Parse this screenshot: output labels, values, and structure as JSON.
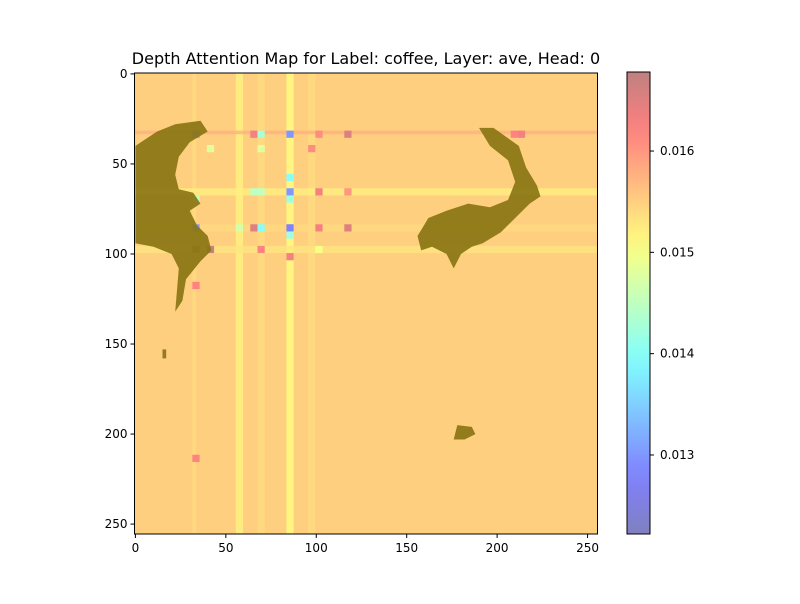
{
  "chart_data": {
    "type": "heatmap",
    "title": "Depth Attention Map for Label: coffee, Layer: ave, Head: 0",
    "xlabel": "",
    "ylabel": "",
    "x_ticks": [
      0,
      50,
      100,
      150,
      200,
      250
    ],
    "y_ticks": [
      0,
      50,
      100,
      150,
      200,
      250
    ],
    "xlim": [
      -0.5,
      255.5
    ],
    "ylim": [
      255.5,
      -0.5
    ],
    "grid": false,
    "colorbar": {
      "colormap": "jet",
      "alpha": 0.5,
      "range": [
        0.01222,
        0.01678
      ],
      "ticks": [
        0.013,
        0.014,
        0.015,
        0.016
      ],
      "tick_labels": [
        "0.013",
        "0.014",
        "0.015",
        "0.016"
      ]
    },
    "background_value": 0.0155,
    "vertical_bands": [
      {
        "x": [
          56,
          60
        ],
        "value": 0.0152
      },
      {
        "x": [
          84,
          88
        ],
        "value": 0.0151
      },
      {
        "x": [
          68,
          72
        ],
        "value": 0.0154
      },
      {
        "x": [
          32,
          34
        ],
        "value": 0.0154
      },
      {
        "x": [
          96,
          100
        ],
        "value": 0.0154
      }
    ],
    "horizontal_bands": [
      {
        "y": [
          64,
          68
        ],
        "value": 0.0152
      },
      {
        "y": [
          96,
          100
        ],
        "value": 0.0153
      },
      {
        "y": [
          84,
          88
        ],
        "value": 0.0154
      },
      {
        "y": [
          32,
          34
        ],
        "value": 0.0158
      }
    ],
    "hot_cells": [
      {
        "x": 32,
        "y": 32,
        "value": 0.013
      },
      {
        "x": 84,
        "y": 32,
        "value": 0.013
      },
      {
        "x": 84,
        "y": 64,
        "value": 0.013
      },
      {
        "x": 32,
        "y": 84,
        "value": 0.013
      },
      {
        "x": 84,
        "y": 84,
        "value": 0.0128
      },
      {
        "x": 68,
        "y": 32,
        "value": 0.0143
      },
      {
        "x": 40,
        "y": 40,
        "value": 0.0148
      },
      {
        "x": 68,
        "y": 40,
        "value": 0.0148
      },
      {
        "x": 84,
        "y": 56,
        "value": 0.014
      },
      {
        "x": 64,
        "y": 64,
        "value": 0.0145
      },
      {
        "x": 68,
        "y": 64,
        "value": 0.0145
      },
      {
        "x": 32,
        "y": 68,
        "value": 0.0145
      },
      {
        "x": 84,
        "y": 68,
        "value": 0.0142
      },
      {
        "x": 68,
        "y": 84,
        "value": 0.014
      },
      {
        "x": 84,
        "y": 88,
        "value": 0.0142
      },
      {
        "x": 56,
        "y": 84,
        "value": 0.0147
      },
      {
        "x": 100,
        "y": 96,
        "value": 0.015
      },
      {
        "x": 64,
        "y": 32,
        "value": 0.0163
      },
      {
        "x": 100,
        "y": 32,
        "value": 0.0161
      },
      {
        "x": 116,
        "y": 32,
        "value": 0.0165
      },
      {
        "x": 64,
        "y": 84,
        "value": 0.0165
      },
      {
        "x": 116,
        "y": 84,
        "value": 0.0165
      },
      {
        "x": 100,
        "y": 84,
        "value": 0.0163
      },
      {
        "x": 100,
        "y": 64,
        "value": 0.0163
      },
      {
        "x": 32,
        "y": 96,
        "value": 0.0167
      },
      {
        "x": 40,
        "y": 96,
        "value": 0.0167
      },
      {
        "x": 84,
        "y": 100,
        "value": 0.0163
      },
      {
        "x": 32,
        "y": 116,
        "value": 0.0162
      },
      {
        "x": 32,
        "y": 212,
        "value": 0.0162
      },
      {
        "x": 68,
        "y": 96,
        "value": 0.0162
      },
      {
        "x": 212,
        "y": 32,
        "value": 0.0163
      },
      {
        "x": 208,
        "y": 32,
        "value": 0.0162
      },
      {
        "x": 96,
        "y": 40,
        "value": 0.0161
      },
      {
        "x": 116,
        "y": 64,
        "value": 0.016
      }
    ],
    "depth_regions": [
      [
        [
          0,
          40
        ],
        [
          12,
          32
        ],
        [
          22,
          28
        ],
        [
          36,
          26
        ],
        [
          40,
          32
        ],
        [
          30,
          38
        ],
        [
          24,
          46
        ],
        [
          22,
          56
        ],
        [
          24,
          64
        ],
        [
          32,
          66
        ],
        [
          36,
          72
        ],
        [
          30,
          76
        ],
        [
          34,
          84
        ],
        [
          40,
          90
        ],
        [
          42,
          98
        ],
        [
          36,
          104
        ],
        [
          28,
          114
        ],
        [
          26,
          126
        ],
        [
          22,
          132
        ],
        [
          24,
          108
        ],
        [
          20,
          100
        ],
        [
          10,
          96
        ],
        [
          0,
          94
        ]
      ],
      [
        [
          190,
          30
        ],
        [
          198,
          30
        ],
        [
          212,
          40
        ],
        [
          216,
          52
        ],
        [
          222,
          62
        ],
        [
          224,
          68
        ],
        [
          218,
          72
        ],
        [
          210,
          80
        ],
        [
          202,
          88
        ],
        [
          192,
          94
        ],
        [
          186,
          96
        ],
        [
          180,
          100
        ],
        [
          176,
          108
        ],
        [
          172,
          100
        ],
        [
          164,
          96
        ],
        [
          158,
          98
        ],
        [
          156,
          90
        ],
        [
          162,
          80
        ],
        [
          172,
          76
        ],
        [
          184,
          72
        ],
        [
          196,
          74
        ],
        [
          206,
          70
        ],
        [
          210,
          60
        ],
        [
          206,
          48
        ],
        [
          196,
          40
        ]
      ],
      [
        [
          15,
          153
        ],
        [
          17,
          153
        ],
        [
          17,
          158
        ],
        [
          15,
          158
        ]
      ],
      [
        [
          178,
          195
        ],
        [
          186,
          196
        ],
        [
          188,
          200
        ],
        [
          182,
          203
        ],
        [
          176,
          203
        ]
      ]
    ]
  }
}
